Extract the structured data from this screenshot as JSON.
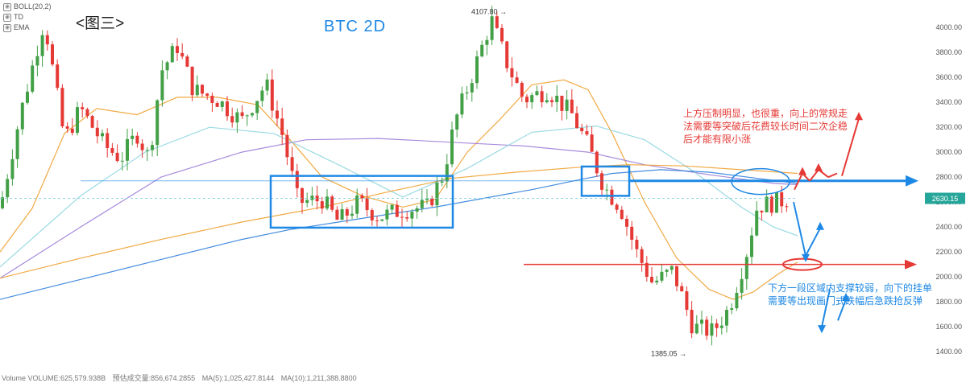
{
  "legend": [
    {
      "label": "BOLL(20,2)",
      "icon": "eye-icon"
    },
    {
      "label": "TD",
      "icon": "eye-icon"
    },
    {
      "label": "EMA",
      "icon": "eye-icon"
    }
  ],
  "figure_label": "<图三>",
  "pair_title": "BTC   2D",
  "notes": {
    "resistance": "上方压制明显，也很重，向上的常规走\n法需要等突破后花费较长时间二次企稳\n后才能有限小涨",
    "support": "下方一段区域内支撑较弱，向下的挂单\n需要等出现画门式跌幅后急跌抢反弹"
  },
  "bottom_info": {
    "volume": "Volume  VOLUME:625,579.938B",
    "turnover": "预估成交量:856,674.2855",
    "ma5": "MA(5):1,025,427.8144",
    "ma10": "MA(10):1,211,388.8800"
  },
  "colors": {
    "up": "#26a69a",
    "down": "#ef5350",
    "red_candle": "#e53935",
    "green_candle": "#43a047",
    "blue_annot": "#1e88e5",
    "red_annot": "#e53935",
    "ema_orange": "#f0a030",
    "ema_purple": "#9c7fd8",
    "ema_teal": "#8fd6e0",
    "ema_blue": "#2f7fdc",
    "current_price_bg": "#26a69a"
  },
  "chart_data": {
    "type": "candlestick",
    "symbol": "BTC",
    "interval": "2D",
    "y_axis": {
      "ticks": [
        1400,
        1600,
        1800,
        2000,
        2200,
        2400,
        2600,
        2800,
        3000,
        3200,
        3400,
        3600,
        3800,
        4000
      ],
      "tick_labels": [
        "1400.00",
        "1600.00",
        "1800.00",
        "2000.00",
        "2200.00",
        "2400.00",
        "2600.00",
        "2800.00",
        "3000.00",
        "3200.00",
        "3400.00",
        "3600.00",
        "3800.00",
        "4000.00"
      ],
      "ylim": [
        1330,
        4130
      ]
    },
    "price_path": [
      [
        0,
        2550
      ],
      [
        25,
        3300
      ],
      [
        55,
        4060
      ],
      [
        80,
        3100
      ],
      [
        100,
        3350
      ],
      [
        130,
        3050
      ],
      [
        150,
        2950
      ],
      [
        170,
        3150
      ],
      [
        185,
        2950
      ],
      [
        200,
        3650
      ],
      [
        220,
        3850
      ],
      [
        240,
        3500
      ],
      [
        270,
        3420
      ],
      [
        300,
        3250
      ],
      [
        330,
        3550
      ],
      [
        350,
        3150
      ],
      [
        370,
        2600
      ],
      [
        400,
        2620
      ],
      [
        420,
        2440
      ],
      [
        445,
        2600
      ],
      [
        470,
        2480
      ],
      [
        500,
        2540
      ],
      [
        530,
        2560
      ],
      [
        550,
        2820
      ],
      [
        565,
        3250
      ],
      [
        585,
        3600
      ],
      [
        610,
        4060
      ],
      [
        630,
        3700
      ],
      [
        650,
        3420
      ],
      [
        680,
        3500
      ],
      [
        710,
        3300
      ],
      [
        730,
        3050
      ],
      [
        750,
        2720
      ],
      [
        770,
        2560
      ],
      [
        790,
        2200
      ],
      [
        810,
        1950
      ],
      [
        835,
        2050
      ],
      [
        860,
        1600
      ],
      [
        885,
        1560
      ],
      [
        905,
        1750
      ],
      [
        925,
        2150
      ],
      [
        940,
        2570
      ],
      [
        965,
        2600
      ],
      [
        980,
        2630
      ]
    ],
    "ma_lines": [
      {
        "color_key": "ema_orange",
        "points": [
          [
            0,
            2200
          ],
          [
            40,
            2550
          ],
          [
            80,
            3150
          ],
          [
            120,
            3350
          ],
          [
            170,
            3300
          ],
          [
            220,
            3440
          ],
          [
            270,
            3440
          ],
          [
            320,
            3380
          ],
          [
            360,
            3100
          ],
          [
            400,
            2800
          ],
          [
            450,
            2650
          ],
          [
            500,
            2560
          ],
          [
            540,
            2620
          ],
          [
            580,
            3000
          ],
          [
            620,
            3260
          ],
          [
            660,
            3540
          ],
          [
            700,
            3580
          ],
          [
            730,
            3500
          ],
          [
            760,
            3150
          ],
          [
            800,
            2600
          ],
          [
            840,
            2150
          ],
          [
            880,
            1900
          ],
          [
            910,
            1820
          ],
          [
            935,
            1880
          ],
          [
            965,
            2020
          ],
          [
            990,
            2120
          ]
        ]
      },
      {
        "color_key": "ema_purple",
        "points": [
          [
            0,
            1990
          ],
          [
            100,
            2400
          ],
          [
            200,
            2800
          ],
          [
            300,
            3000
          ],
          [
            380,
            3100
          ],
          [
            470,
            3110
          ],
          [
            560,
            3080
          ],
          [
            650,
            3050
          ],
          [
            730,
            3000
          ],
          [
            800,
            2900
          ],
          [
            880,
            2820
          ],
          [
            960,
            2750
          ],
          [
            990,
            2740
          ]
        ]
      },
      {
        "color_key": "ema_teal",
        "points": [
          [
            0,
            2080
          ],
          [
            100,
            2650
          ],
          [
            180,
            3000
          ],
          [
            260,
            3200
          ],
          [
            340,
            3150
          ],
          [
            420,
            2900
          ],
          [
            500,
            2640
          ],
          [
            580,
            2870
          ],
          [
            660,
            3160
          ],
          [
            740,
            3210
          ],
          [
            800,
            3100
          ],
          [
            860,
            2850
          ],
          [
            920,
            2560
          ],
          [
            960,
            2400
          ],
          [
            990,
            2330
          ]
        ]
      },
      {
        "color_key": "ema_blue",
        "points": [
          [
            0,
            1820
          ],
          [
            100,
            1980
          ],
          [
            200,
            2140
          ],
          [
            300,
            2300
          ],
          [
            360,
            2380
          ],
          [
            420,
            2440
          ],
          [
            480,
            2500
          ],
          [
            540,
            2560
          ],
          [
            600,
            2630
          ],
          [
            660,
            2700
          ],
          [
            720,
            2780
          ],
          [
            760,
            2830
          ],
          [
            820,
            2860
          ],
          [
            880,
            2840
          ],
          [
            940,
            2790
          ],
          [
            990,
            2750
          ]
        ]
      },
      {
        "color_key": "ema_orange",
        "points": [
          [
            0,
            1990
          ],
          [
            100,
            2150
          ],
          [
            200,
            2300
          ],
          [
            300,
            2440
          ],
          [
            400,
            2560
          ],
          [
            480,
            2680
          ],
          [
            560,
            2790
          ],
          [
            640,
            2840
          ],
          [
            720,
            2880
          ],
          [
            780,
            2900
          ],
          [
            850,
            2890
          ],
          [
            920,
            2860
          ],
          [
            990,
            2830
          ]
        ]
      }
    ],
    "price_labels": {
      "high": "4107.80",
      "low": "1385.05",
      "current": "2630.15"
    },
    "annotations": {
      "box1": {
        "x0": 336,
        "x1": 562,
        "y_top": 2810,
        "y_bottom": 2395
      },
      "box2": {
        "x0": 722,
        "x1": 781,
        "y_top": 2885,
        "y_bottom": 2650
      },
      "blue_line_price": 2770,
      "red_line_price": 2100,
      "current_line_price": 2630
    },
    "xlabel": "",
    "ylabel": "",
    "grid": false
  }
}
